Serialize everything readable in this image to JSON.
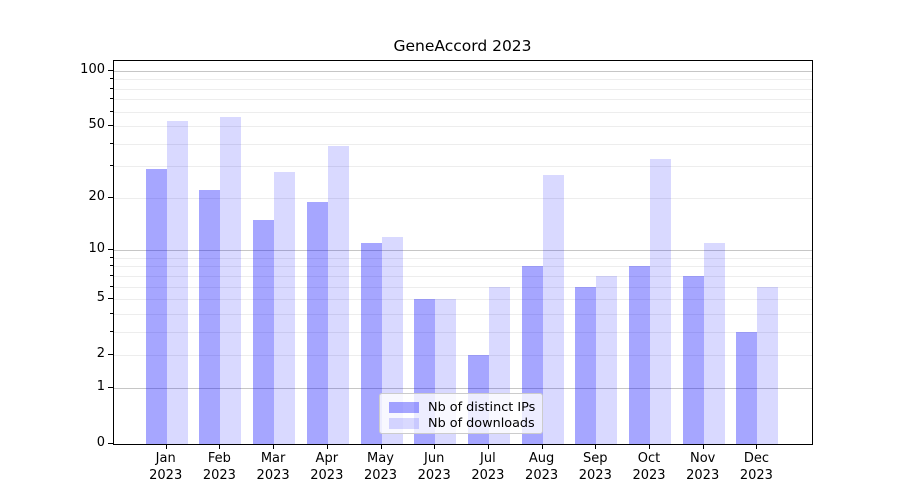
{
  "chart_data": {
    "type": "bar",
    "title": "GeneAccord 2023",
    "categories": [
      "Jan",
      "Feb",
      "Mar",
      "Apr",
      "May",
      "Jun",
      "Jul",
      "Aug",
      "Sep",
      "Oct",
      "Nov",
      "Dec"
    ],
    "category_year": "2023",
    "series": [
      {
        "name": "Nb of distinct IPs",
        "color": "#0000FF59",
        "values": [
          29,
          22,
          15,
          19,
          11,
          5,
          2,
          8,
          6,
          8,
          7,
          3
        ]
      },
      {
        "name": "Nb of downloads",
        "color": "#0000FF26",
        "values": [
          53,
          56,
          28,
          39,
          12,
          5,
          6,
          27,
          7,
          33,
          11,
          6
        ]
      }
    ],
    "yscale": "log1p",
    "ylim": [
      0,
      113
    ],
    "yticks": [
      0,
      1,
      2,
      5,
      10,
      20,
      50,
      100
    ],
    "gridlines": {
      "major": [
        1,
        10,
        100
      ],
      "minor": [
        2,
        3,
        4,
        5,
        6,
        7,
        8,
        9,
        20,
        30,
        40,
        50,
        60,
        70,
        80,
        90
      ]
    },
    "legend_position": "lower-center",
    "grid": true
  },
  "legend": {
    "items": [
      {
        "label": "Nb of distinct IPs"
      },
      {
        "label": "Nb of downloads"
      }
    ]
  },
  "colors": {
    "bar_ips": "#0000FF59",
    "bar_downloads": "#0000FF26",
    "grid_major": "#C6C6C6",
    "grid_minor": "#EDEDED",
    "axis": "#000000"
  }
}
